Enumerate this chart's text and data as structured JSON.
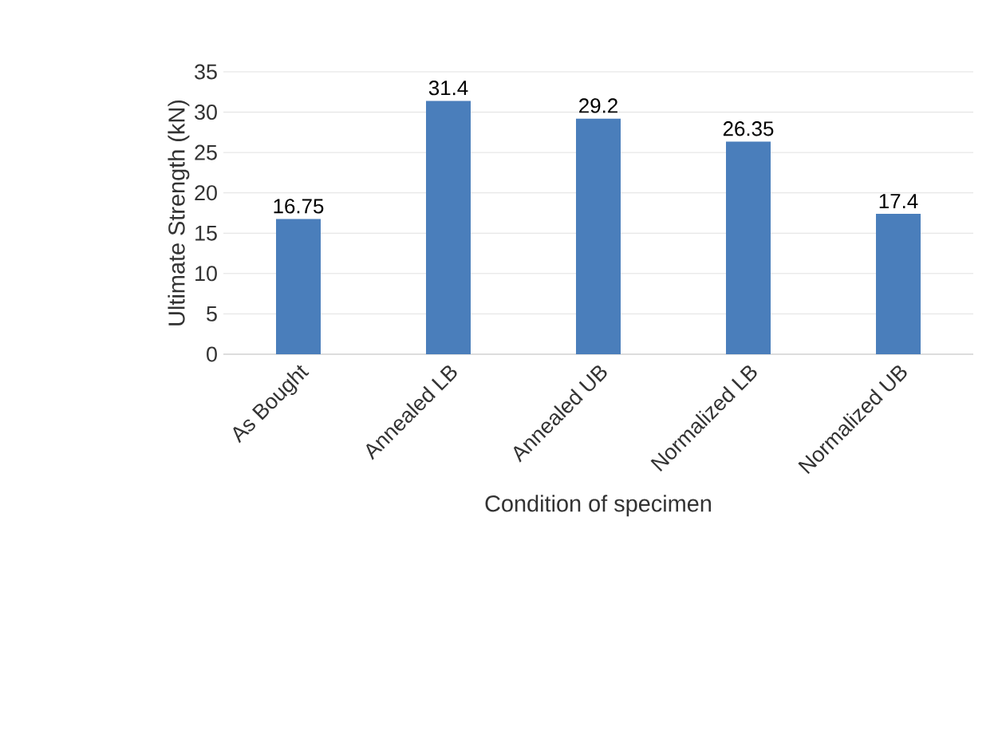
{
  "chart_data": {
    "type": "bar",
    "xlabel": "Condition of specimen",
    "ylabel": "Ultimate Strength  (kN)",
    "categories": [
      "As Bought",
      "Annealed LB",
      "Annealed UB",
      "Normalized LB",
      "Normalized UB"
    ],
    "values": [
      16.75,
      31.4,
      29.2,
      26.35,
      17.4
    ],
    "color": "#4a7ebb",
    "ylim": [
      0,
      35
    ],
    "yticks": [
      0,
      5,
      10,
      15,
      20,
      25,
      30,
      35
    ],
    "grid": "y",
    "data_labels": true
  }
}
